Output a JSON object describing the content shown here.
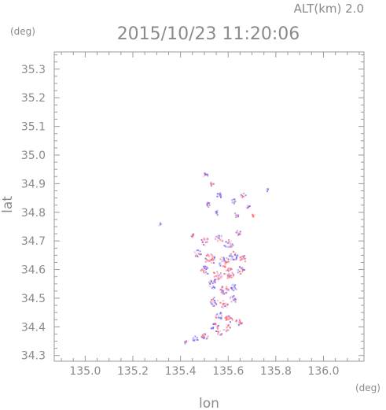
{
  "header": {
    "alt_label": "ALT(km) 2.0",
    "datetime": "2015/10/23 11:20:06",
    "y_unit": "(deg)",
    "x_unit": "(deg)"
  },
  "chart_data": {
    "type": "heatmap",
    "title": "2015/10/23 11:20:06",
    "subtitle": "ALT(km) 2.0",
    "xlabel": "lon",
    "ylabel": "lat",
    "xunit": "(deg)",
    "yunit": "(deg)",
    "xlim": [
      134.87,
      136.17
    ],
    "ylim": [
      34.28,
      35.36
    ],
    "xticks": [
      135.0,
      135.2,
      135.4,
      135.6,
      135.8,
      136.0
    ],
    "xtick_labels": [
      "135.0",
      "135.2",
      "135.4",
      "135.6",
      "135.8",
      "136.0"
    ],
    "yticks": [
      34.3,
      34.4,
      34.5,
      34.6,
      34.7,
      34.8,
      34.9,
      35.0,
      35.1,
      35.2,
      35.3
    ],
    "ytick_labels": [
      "34.3",
      "34.4",
      "34.5",
      "34.6",
      "34.7",
      "34.8",
      "34.9",
      "35.0",
      "35.1",
      "35.2",
      "35.3"
    ],
    "colors": {
      "positive": "#ff6f7a",
      "negative": "#6f6fff",
      "axis": "#8a8a8a"
    },
    "blobs": [
      {
        "lon": 135.5,
        "lat": 34.93,
        "r": 0.012,
        "sign": -1
      },
      {
        "lon": 135.53,
        "lat": 34.9,
        "r": 0.01,
        "sign": 1
      },
      {
        "lon": 135.56,
        "lat": 34.86,
        "r": 0.012,
        "sign": -1
      },
      {
        "lon": 135.51,
        "lat": 34.83,
        "r": 0.011,
        "sign": -1
      },
      {
        "lon": 135.55,
        "lat": 34.8,
        "r": 0.01,
        "sign": -1
      },
      {
        "lon": 135.62,
        "lat": 34.84,
        "r": 0.01,
        "sign": -1
      },
      {
        "lon": 135.66,
        "lat": 34.86,
        "r": 0.012,
        "sign": 1
      },
      {
        "lon": 135.68,
        "lat": 34.82,
        "r": 0.01,
        "sign": -1
      },
      {
        "lon": 135.63,
        "lat": 34.79,
        "r": 0.012,
        "sign": -1
      },
      {
        "lon": 135.7,
        "lat": 34.79,
        "r": 0.01,
        "sign": 1
      },
      {
        "lon": 135.45,
        "lat": 34.72,
        "r": 0.008,
        "sign": 1
      },
      {
        "lon": 135.5,
        "lat": 34.7,
        "r": 0.018,
        "sign": 1
      },
      {
        "lon": 135.56,
        "lat": 34.71,
        "r": 0.018,
        "sign": 1
      },
      {
        "lon": 135.6,
        "lat": 34.69,
        "r": 0.02,
        "sign": -1
      },
      {
        "lon": 135.64,
        "lat": 34.73,
        "r": 0.012,
        "sign": 1
      },
      {
        "lon": 135.47,
        "lat": 34.66,
        "r": 0.016,
        "sign": -1
      },
      {
        "lon": 135.52,
        "lat": 34.64,
        "r": 0.024,
        "sign": 1
      },
      {
        "lon": 135.58,
        "lat": 34.63,
        "r": 0.024,
        "sign": 1
      },
      {
        "lon": 135.62,
        "lat": 34.65,
        "r": 0.02,
        "sign": -1
      },
      {
        "lon": 135.66,
        "lat": 34.64,
        "r": 0.014,
        "sign": 1
      },
      {
        "lon": 135.5,
        "lat": 34.6,
        "r": 0.018,
        "sign": -1
      },
      {
        "lon": 135.55,
        "lat": 34.58,
        "r": 0.022,
        "sign": 1
      },
      {
        "lon": 135.6,
        "lat": 34.59,
        "r": 0.024,
        "sign": 1
      },
      {
        "lon": 135.65,
        "lat": 34.6,
        "r": 0.016,
        "sign": -1
      },
      {
        "lon": 135.53,
        "lat": 34.55,
        "r": 0.018,
        "sign": -1
      },
      {
        "lon": 135.58,
        "lat": 34.53,
        "r": 0.02,
        "sign": 1
      },
      {
        "lon": 135.62,
        "lat": 34.54,
        "r": 0.014,
        "sign": -1
      },
      {
        "lon": 135.54,
        "lat": 34.49,
        "r": 0.02,
        "sign": -1
      },
      {
        "lon": 135.58,
        "lat": 34.48,
        "r": 0.018,
        "sign": 1
      },
      {
        "lon": 135.62,
        "lat": 34.5,
        "r": 0.016,
        "sign": -1
      },
      {
        "lon": 135.56,
        "lat": 34.44,
        "r": 0.016,
        "sign": -1
      },
      {
        "lon": 135.6,
        "lat": 34.43,
        "r": 0.018,
        "sign": 1
      },
      {
        "lon": 135.64,
        "lat": 34.42,
        "r": 0.016,
        "sign": 1
      },
      {
        "lon": 135.54,
        "lat": 34.4,
        "r": 0.018,
        "sign": -1
      },
      {
        "lon": 135.59,
        "lat": 34.4,
        "r": 0.016,
        "sign": 1
      },
      {
        "lon": 135.5,
        "lat": 34.37,
        "r": 0.016,
        "sign": 1
      },
      {
        "lon": 135.46,
        "lat": 34.36,
        "r": 0.012,
        "sign": -1
      },
      {
        "lon": 135.56,
        "lat": 34.38,
        "r": 0.012,
        "sign": -1
      },
      {
        "lon": 135.42,
        "lat": 34.35,
        "r": 0.008,
        "sign": -1
      },
      {
        "lon": 135.76,
        "lat": 34.88,
        "r": 0.004,
        "sign": -1
      },
      {
        "lon": 135.31,
        "lat": 34.76,
        "r": 0.004,
        "sign": -1
      }
    ]
  }
}
